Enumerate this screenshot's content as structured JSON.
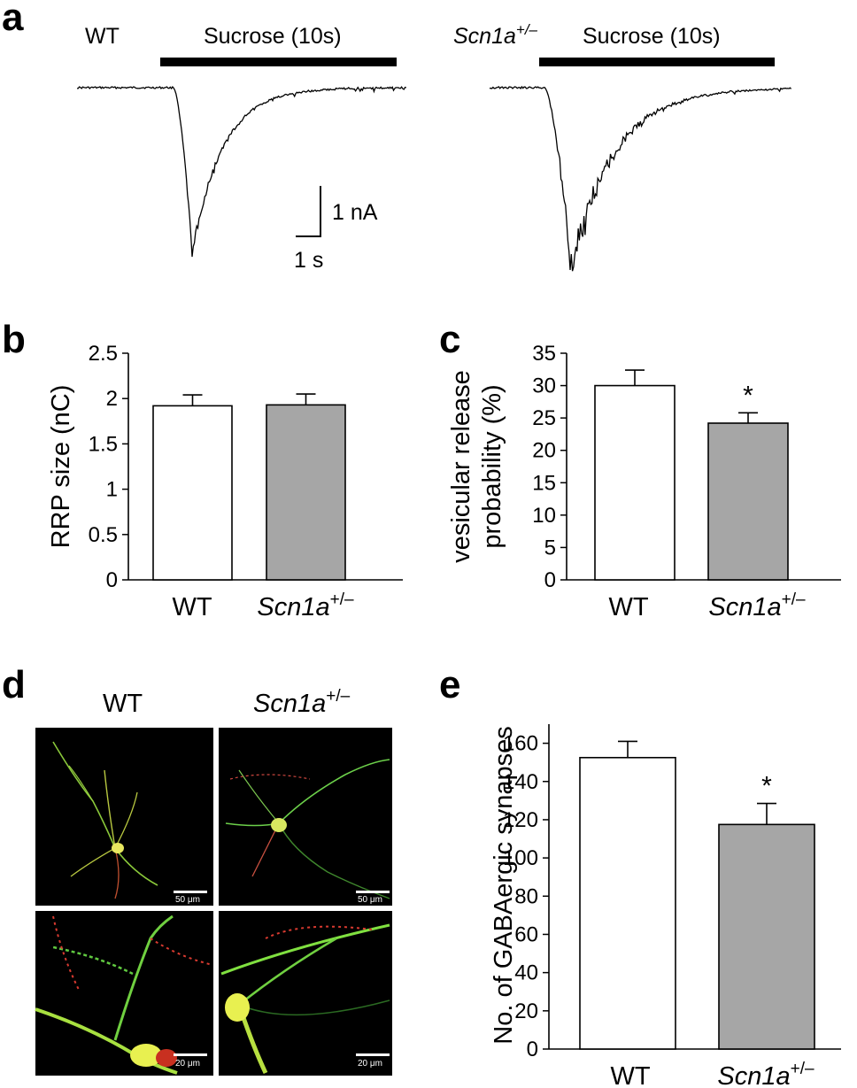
{
  "panels": {
    "a": {
      "label": "a",
      "wt_title": "WT",
      "het_title_main": "Scn1a",
      "het_title_sup": "+/–",
      "stim_label": "Sucrose (10s)",
      "scale_y": "1 nA",
      "scale_x": "1 s"
    },
    "b": {
      "label": "b"
    },
    "c": {
      "label": "c"
    },
    "d": {
      "label": "d",
      "col_wt": "WT",
      "col_het_main": "Scn1a",
      "col_het_sup": "+/–",
      "scalebar_top": "50 μm",
      "scalebar_bottom": "20 μm"
    },
    "e": {
      "label": "e"
    }
  },
  "colors": {
    "wt_bar": "#ffffff",
    "het_bar": "#a6a6a6",
    "image_bg": "#000000",
    "stain_green": "#3ad83a",
    "stain_red": "#e3261f",
    "overlap_yellow": "#f0f040"
  },
  "chart_data": [
    {
      "panel": "b",
      "type": "bar",
      "categories": [
        "WT",
        "Scn1a+/–"
      ],
      "category_labels": [
        {
          "main": "WT",
          "sup": ""
        },
        {
          "main": "Scn1a",
          "sup": "+/–"
        }
      ],
      "values": [
        1.92,
        1.93
      ],
      "errors": [
        0.12,
        0.12
      ],
      "significance": [
        "",
        ""
      ],
      "ylabel": "RRP size (nC)",
      "ylim": [
        0,
        2.5
      ],
      "yticks": [
        0,
        0.5,
        1,
        1.5,
        2,
        2.5
      ],
      "ytick_labels": [
        "0",
        "0.5",
        "1",
        "1.5",
        "2",
        "2.5"
      ]
    },
    {
      "panel": "c",
      "type": "bar",
      "categories": [
        "WT",
        "Scn1a+/–"
      ],
      "category_labels": [
        {
          "main": "WT",
          "sup": ""
        },
        {
          "main": "Scn1a",
          "sup": "+/–"
        }
      ],
      "values": [
        30.0,
        24.2
      ],
      "errors": [
        2.4,
        1.6
      ],
      "significance": [
        "",
        "*"
      ],
      "ylabel_lines": [
        "vesicular release",
        "probability (%)"
      ],
      "ylim": [
        0,
        35
      ],
      "yticks": [
        0,
        5,
        10,
        15,
        20,
        25,
        30,
        35
      ],
      "ytick_labels": [
        "0",
        "5",
        "10",
        "15",
        "20",
        "25",
        "30",
        "35"
      ]
    },
    {
      "panel": "e",
      "type": "bar",
      "categories": [
        "WT",
        "Scn1a+/–"
      ],
      "category_labels": [
        {
          "main": "WT",
          "sup": ""
        },
        {
          "main": "Scn1a",
          "sup": "+/–"
        }
      ],
      "values": [
        152.5,
        117.5
      ],
      "errors": [
        8.5,
        11.0
      ],
      "significance": [
        "",
        "*"
      ],
      "ylabel": "No. of GABAergic synapses",
      "ylim": [
        0,
        170
      ],
      "yticks": [
        0,
        20,
        40,
        60,
        80,
        100,
        120,
        140,
        160
      ],
      "ytick_labels": [
        "0",
        "20",
        "40",
        "60",
        "80",
        "100",
        "120",
        "140",
        "160"
      ]
    }
  ]
}
